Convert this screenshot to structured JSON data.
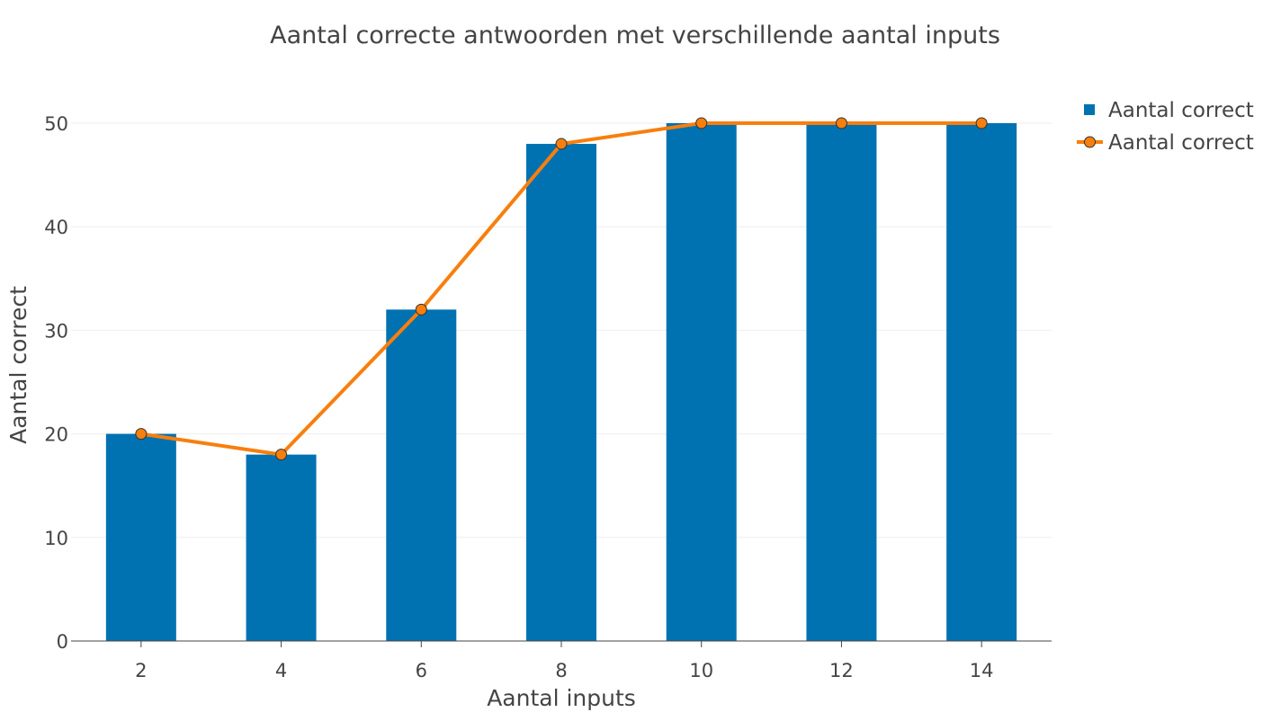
{
  "chart_data": {
    "type": "bar",
    "title": "Aantal correcte antwoorden met verschillende aantal inputs",
    "xlabel": "Aantal inputs",
    "ylabel": "Aantal correct",
    "x": [
      2,
      4,
      6,
      8,
      10,
      12,
      14
    ],
    "xlim": [
      1,
      15
    ],
    "ylim": [
      0,
      50
    ],
    "yticks": [
      0,
      10,
      20,
      30,
      40,
      50
    ],
    "grid": true,
    "legend_position": "top-right",
    "series": [
      {
        "name": "Aantal correct",
        "type": "bar",
        "values": [
          20,
          18,
          32,
          48,
          50,
          50,
          50
        ],
        "color": "#0072b2"
      },
      {
        "name": "Aantal correct",
        "type": "line",
        "values": [
          20,
          18,
          32,
          48,
          50,
          50,
          50
        ],
        "color": "#f77f0e"
      }
    ]
  }
}
